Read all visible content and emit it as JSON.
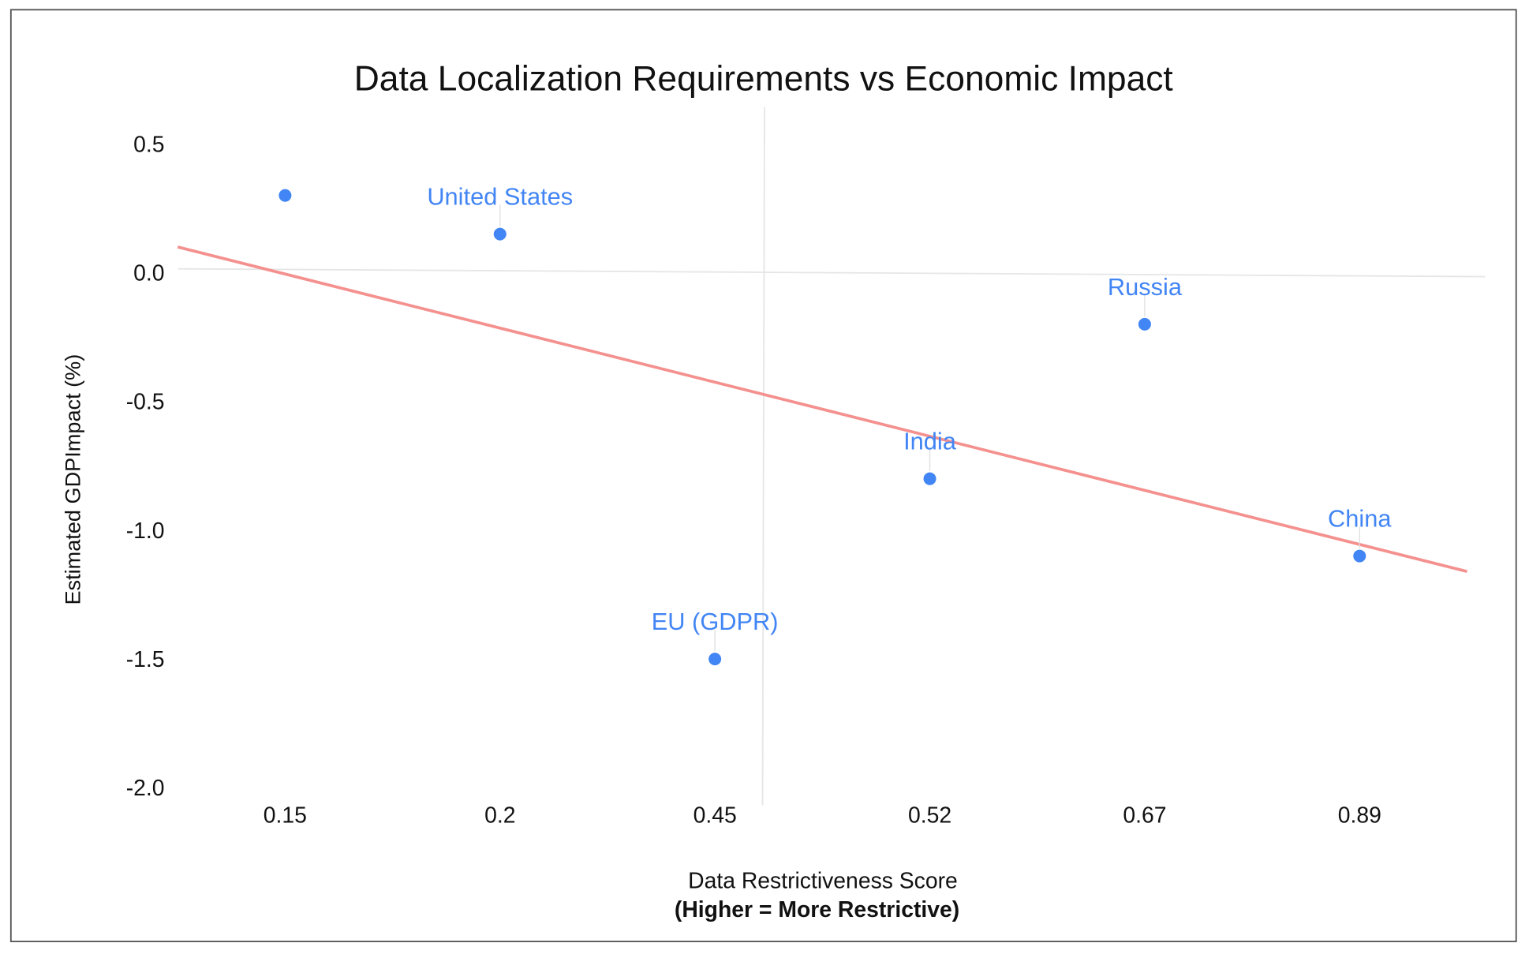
{
  "chart_data": {
    "type": "scatter",
    "title": "Data Localization Requirements vs Economic Impact",
    "xlabel": "Data Restrictiveness Score",
    "xlabel_sub": "(Higher = More Restrictive)",
    "ylabel": "Estimated GDPImpact (%)",
    "x_axis_kind": "categorical",
    "categories": [
      "0.15",
      "0.2",
      "0.45",
      "0.52",
      "0.67",
      "0.89"
    ],
    "ylim": [
      -2.0,
      0.5
    ],
    "yticks": [
      "0.5",
      "0.0",
      "-0.5",
      "-1.0",
      "-1.5",
      "-2.0"
    ],
    "points": [
      {
        "x": "0.15",
        "y": 0.3,
        "label": ""
      },
      {
        "x": "0.2",
        "y": 0.15,
        "label": "United States"
      },
      {
        "x": "0.45",
        "y": -1.5,
        "label": "EU (GDPR)"
      },
      {
        "x": "0.52",
        "y": -0.8,
        "label": "India"
      },
      {
        "x": "0.67",
        "y": -0.2,
        "label": "Russia"
      },
      {
        "x": "0.89",
        "y": -1.1,
        "label": "China"
      }
    ],
    "trendline": {
      "type": "linear",
      "start_y": 0.1,
      "end_y": -1.16
    },
    "grid": {
      "zero_line": true,
      "vertical_center_line": true
    },
    "legend": "none",
    "colors": {
      "points": "#4285F4",
      "labels": "#4285F4",
      "trendline": "#F4918F",
      "grid": "#E6E6E6"
    }
  }
}
